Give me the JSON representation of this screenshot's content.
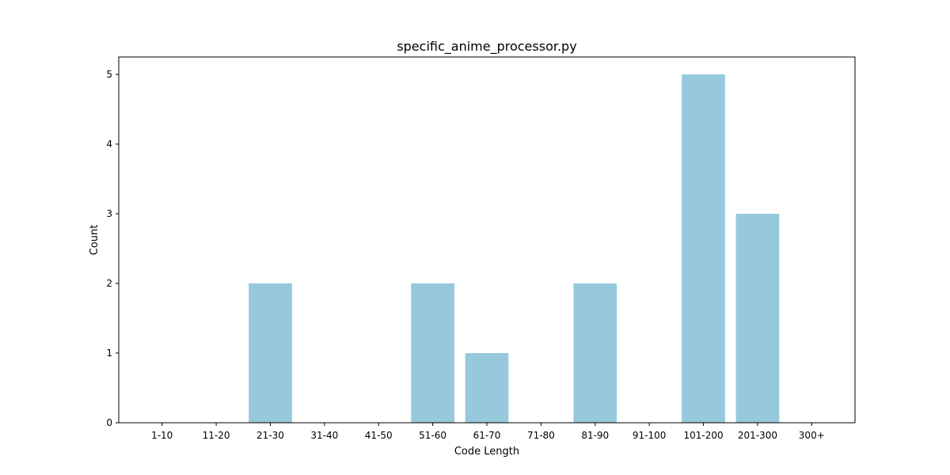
{
  "chart_data": {
    "type": "bar",
    "title": "specific_anime_processor.py",
    "xlabel": "Code Length",
    "ylabel": "Count",
    "categories": [
      "1-10",
      "11-20",
      "21-30",
      "31-40",
      "41-50",
      "51-60",
      "61-70",
      "71-80",
      "81-90",
      "91-100",
      "101-200",
      "201-300",
      "300+"
    ],
    "values": [
      0,
      0,
      2,
      0,
      0,
      2,
      1,
      0,
      2,
      0,
      5,
      3,
      0
    ],
    "ylim": [
      0,
      5.25
    ],
    "yticks": [
      0,
      1,
      2,
      3,
      4,
      5
    ],
    "grid": false,
    "bar_color": "#96c9dc"
  }
}
